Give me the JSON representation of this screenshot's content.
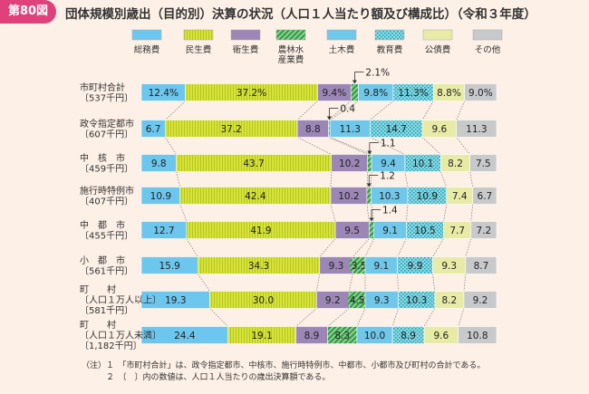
{
  "figure_label": "第80図",
  "title": "団体規模別歳出（目的別）決算の状況（人口１人当たり額及び構成比）（令和３年度）",
  "colors": {
    "badge": "#e0417a",
    "background": "#fdf0e6",
    "series": [
      "#6cc6ee",
      "#d6e33a",
      "#9c86b6",
      "#4bb05f",
      "#6fc7e9",
      "#34b3c4",
      "#e8eba6",
      "#c8c9cb"
    ]
  },
  "chart_data": {
    "type": "bar",
    "orientation": "horizontal",
    "stacked": "percent",
    "title": "団体規模別歳出（目的別）決算の状況（人口１人当たり額及び構成比）（令和３年度）",
    "legend_position": "top",
    "series_names": [
      "総務費",
      "民生費",
      "衛生費",
      "農林水\n産業費",
      "土木費",
      "教育費",
      "公債費",
      "その他"
    ],
    "categories": [
      {
        "name": "市町村合計",
        "amount": "〔537千円〕"
      },
      {
        "name": "政令指定都市",
        "amount": "〔607千円〕"
      },
      {
        "name": "中　核　市",
        "amount": "〔459千円〕"
      },
      {
        "name": "施行時特例市",
        "amount": "〔407千円〕"
      },
      {
        "name": "中　都　市",
        "amount": "〔455千円〕"
      },
      {
        "name": "小　都　市",
        "amount": "〔561千円〕"
      },
      {
        "name": "町　　村\n〔人口１万人以上〕",
        "amount": "〔581千円〕"
      },
      {
        "name": "町　　村\n〔人口１万人未満〕",
        "amount": "〔1,182千円〕"
      }
    ],
    "values": [
      [
        12.4,
        37.2,
        9.4,
        2.1,
        9.8,
        11.3,
        8.8,
        9.0
      ],
      [
        6.7,
        37.2,
        8.8,
        0.4,
        11.3,
        14.7,
        9.6,
        11.3
      ],
      [
        9.8,
        43.7,
        10.2,
        1.1,
        9.4,
        10.1,
        8.2,
        7.5
      ],
      [
        10.9,
        42.4,
        10.2,
        1.2,
        10.3,
        10.9,
        7.4,
        6.7
      ],
      [
        12.7,
        41.9,
        9.5,
        1.4,
        9.1,
        10.5,
        7.7,
        7.2
      ],
      [
        15.9,
        34.3,
        9.3,
        3.5,
        9.1,
        9.9,
        9.3,
        8.7
      ],
      [
        19.3,
        30.0,
        9.2,
        4.5,
        9.3,
        10.3,
        8.2,
        9.2
      ],
      [
        24.4,
        19.1,
        8.9,
        8.3,
        10.0,
        8.9,
        9.6,
        10.8
      ]
    ],
    "labels": [
      [
        "12.4%",
        "37.2%",
        "9.4%",
        "",
        "9.8%",
        "11.3%",
        "8.8%",
        "9.0%"
      ],
      [
        "6.7",
        "37.2",
        "8.8",
        "",
        "11.3",
        "14.7",
        "9.6",
        "11.3"
      ],
      [
        "9.8",
        "43.7",
        "10.2",
        "",
        "9.4",
        "10.1",
        "8.2",
        "7.5"
      ],
      [
        "10.9",
        "42.4",
        "10.2",
        "",
        "10.3",
        "10.9",
        "7.4",
        "6.7"
      ],
      [
        "12.7",
        "41.9",
        "9.5",
        "",
        "9.1",
        "10.5",
        "7.7",
        "7.2"
      ],
      [
        "15.9",
        "34.3",
        "9.3",
        "3.5",
        "9.1",
        "9.9",
        "9.3",
        "8.7"
      ],
      [
        "19.3",
        "30.0",
        "9.2",
        "4.5",
        "9.3",
        "10.3",
        "8.2",
        "9.2"
      ],
      [
        "24.4",
        "19.1",
        "8.9",
        "8.3",
        "10.0",
        "8.9",
        "9.6",
        "10.8"
      ]
    ],
    "callouts": [
      "2.1%",
      "0.4",
      "1.1",
      "1.2",
      "1.4",
      "",
      "",
      ""
    ]
  },
  "notes": [
    "（注）１　「市町村合計」は、政令指定都市、中核市、施行時特例市、中都市、小都市及び町村の合計である。",
    "　　　２　〔　〕内の数値は、人口１人当たりの歳出決算額である。"
  ]
}
